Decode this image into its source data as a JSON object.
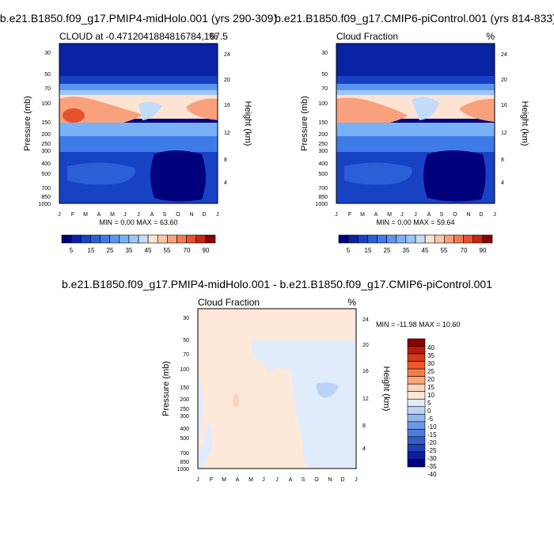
{
  "chart_data": [
    {
      "type": "heatmap",
      "title": "b.e21.B1850.f09_g17.PMIP4-midHolo.001 (yrs 290-309)",
      "left_label": "CLOUD at -0.4712041884816784,167.5",
      "right_label": "%",
      "ylabel": "Pressure (mb)",
      "ylabel_right": "Height (km)",
      "x_ticks": [
        "J",
        "F",
        "M",
        "A",
        "M",
        "J",
        "J",
        "A",
        "S",
        "O",
        "N",
        "D",
        "J"
      ],
      "y_ticks": [
        "30",
        "50",
        "70",
        "100",
        "150",
        "200",
        "250",
        "300",
        "400",
        "500",
        "700",
        "850",
        "1000"
      ],
      "y_right_ticks": [
        "24",
        "20",
        "16",
        "12",
        "8",
        "4"
      ],
      "minmax": "MIN =  0.00 MAX = 63.60",
      "colorbar_labels": [
        "5",
        "15",
        "25",
        "35",
        "45",
        "55",
        "70",
        "90"
      ],
      "contour_levels": [
        5,
        10,
        15,
        20,
        25,
        30,
        35,
        40,
        45,
        50,
        55,
        60,
        70,
        80,
        90
      ]
    },
    {
      "type": "heatmap",
      "title": "b.e21.B1850.f09_g17.CMIP6-piControl.001 (yrs 814-833)",
      "left_label": "Cloud Fraction",
      "right_label": "%",
      "ylabel": "Pressure (mb)",
      "ylabel_right": "Height (km)",
      "x_ticks": [
        "J",
        "F",
        "M",
        "A",
        "M",
        "J",
        "J",
        "A",
        "S",
        "O",
        "N",
        "D",
        "J"
      ],
      "y_ticks": [
        "30",
        "50",
        "70",
        "100",
        "150",
        "200",
        "250",
        "300",
        "400",
        "500",
        "700",
        "850",
        "1000"
      ],
      "y_right_ticks": [
        "24",
        "20",
        "16",
        "12",
        "8",
        "4"
      ],
      "minmax": "MIN =  0.00 MAX = 59.64",
      "colorbar_labels": [
        "5",
        "15",
        "25",
        "35",
        "45",
        "55",
        "70",
        "90"
      ],
      "contour_levels": [
        5,
        10,
        15,
        20,
        25,
        30,
        35,
        40,
        45,
        50,
        55,
        60,
        70,
        80,
        90
      ]
    },
    {
      "type": "heatmap",
      "title": "b.e21.B1850.f09_g17.PMIP4-midHolo.001 - b.e21.B1850.f09_g17.CMIP6-piControl.001",
      "left_label": "Cloud Fraction",
      "right_label": "%",
      "ylabel": "Pressure (mb)",
      "ylabel_right": "Height (km)",
      "x_ticks": [
        "J",
        "F",
        "M",
        "A",
        "M",
        "J",
        "J",
        "A",
        "S",
        "O",
        "N",
        "D",
        "J"
      ],
      "y_ticks": [
        "30",
        "50",
        "70",
        "100",
        "150",
        "200",
        "250",
        "300",
        "400",
        "500",
        "700",
        "850",
        "1000"
      ],
      "y_right_ticks": [
        "24",
        "20",
        "16",
        "12",
        "8",
        "4"
      ],
      "minmax": "MIN = -11.98 MAX =  10.60",
      "colorbar_labels": [
        "40",
        "35",
        "30",
        "25",
        "20",
        "15",
        "10",
        "5",
        "0",
        "-5",
        "-10",
        "-15",
        "-20",
        "-25",
        "-30",
        "-35",
        "-40"
      ],
      "contour_levels": [
        -40,
        -35,
        -30,
        -25,
        -20,
        -15,
        -10,
        -5,
        0,
        5,
        10,
        15,
        20,
        25,
        30,
        35,
        40
      ]
    }
  ],
  "colors": {
    "abs_scale": [
      "#00007f",
      "#0a23a4",
      "#1842c4",
      "#2a5fd6",
      "#3f7be8",
      "#5a96f0",
      "#7ab0f5",
      "#9dc5f8",
      "#c3dcfa",
      "#fde3d2",
      "#fcc6a9",
      "#f9a17c",
      "#f47a52",
      "#e8502f",
      "#c92512",
      "#8b0000"
    ],
    "diff_scale": [
      "#8b0000",
      "#b51a0a",
      "#d63a17",
      "#ea5a2a",
      "#f57e48",
      "#fba67a",
      "#fdd3bb",
      "#fde8d9",
      "#e0ecfb",
      "#b9d3f7",
      "#93b6ef",
      "#6f98e4",
      "#4f7cd8",
      "#355fc8",
      "#1f40b5",
      "#0b1f9a",
      "#00007f"
    ]
  }
}
